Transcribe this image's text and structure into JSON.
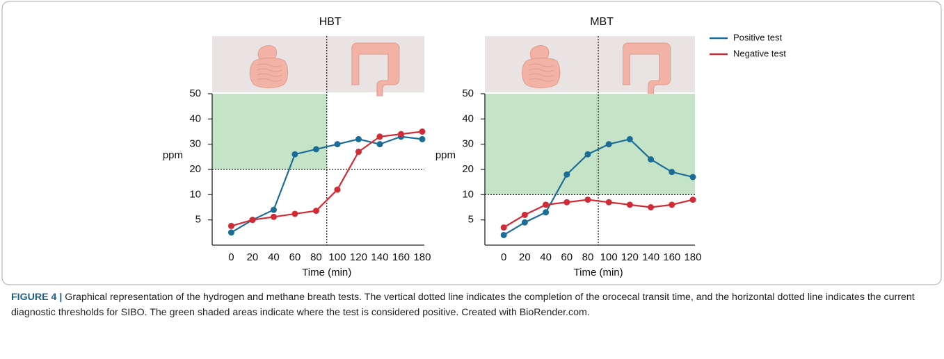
{
  "chart_data": [
    {
      "type": "line",
      "title": "HBT",
      "xlabel": "Time (min)",
      "ylabel": "ppm",
      "x": [
        0,
        20,
        40,
        60,
        80,
        100,
        120,
        140,
        160,
        180
      ],
      "series": [
        {
          "color": "#1c6c98",
          "values": [
            2.5,
            5,
            7,
            26,
            28,
            30,
            32,
            30,
            33,
            32
          ]
        },
        {
          "color": "#d12b36",
          "values": [
            3.8,
            5,
            5.6,
            6.2,
            6.8,
            12,
            27,
            33,
            34,
            35
          ]
        }
      ],
      "xlim": [
        -18,
        182
      ],
      "xticks": [
        0,
        20,
        40,
        60,
        80,
        100,
        120,
        140,
        160,
        180
      ],
      "ylim": [
        0,
        50
      ],
      "yticks": [
        5,
        10,
        20,
        30,
        40,
        50
      ],
      "yscale": "tick-spaced",
      "threshold": 20,
      "transit_time": 90,
      "shade_until_transit": true
    },
    {
      "type": "line",
      "title": "MBT",
      "xlabel": "Time (min)",
      "ylabel": "ppm",
      "x": [
        0,
        20,
        40,
        60,
        80,
        100,
        120,
        140,
        160,
        180
      ],
      "series": [
        {
          "name": "Positive test",
          "color": "#1c6c98",
          "values": [
            2,
            4.5,
            6.5,
            18,
            26,
            30,
            32,
            24,
            19,
            17
          ]
        },
        {
          "name": "Negative test",
          "color": "#d12b36",
          "values": [
            3.5,
            6,
            8,
            8.5,
            9,
            8.5,
            8,
            7.5,
            8,
            9
          ]
        }
      ],
      "xlim": [
        -18,
        182
      ],
      "xticks": [
        0,
        20,
        40,
        60,
        80,
        100,
        120,
        140,
        160,
        180
      ],
      "ylim": [
        0,
        50
      ],
      "yticks": [
        5,
        10,
        20,
        30,
        40,
        50
      ],
      "yscale": "tick-spaced",
      "threshold": 10,
      "transit_time": 90,
      "shade_until_transit": false
    }
  ],
  "caption": {
    "label": "FIGURE 4 |",
    "text": "Graphical representation of the hydrogen and methane breath tests. The vertical dotted line indicates the completion of the orocecal transit time, and the horizontal dotted line indicates the current diagnostic thresholds for SIBO. The green shaded areas indicate where the test is considered positive. Created with BioRender.com."
  }
}
